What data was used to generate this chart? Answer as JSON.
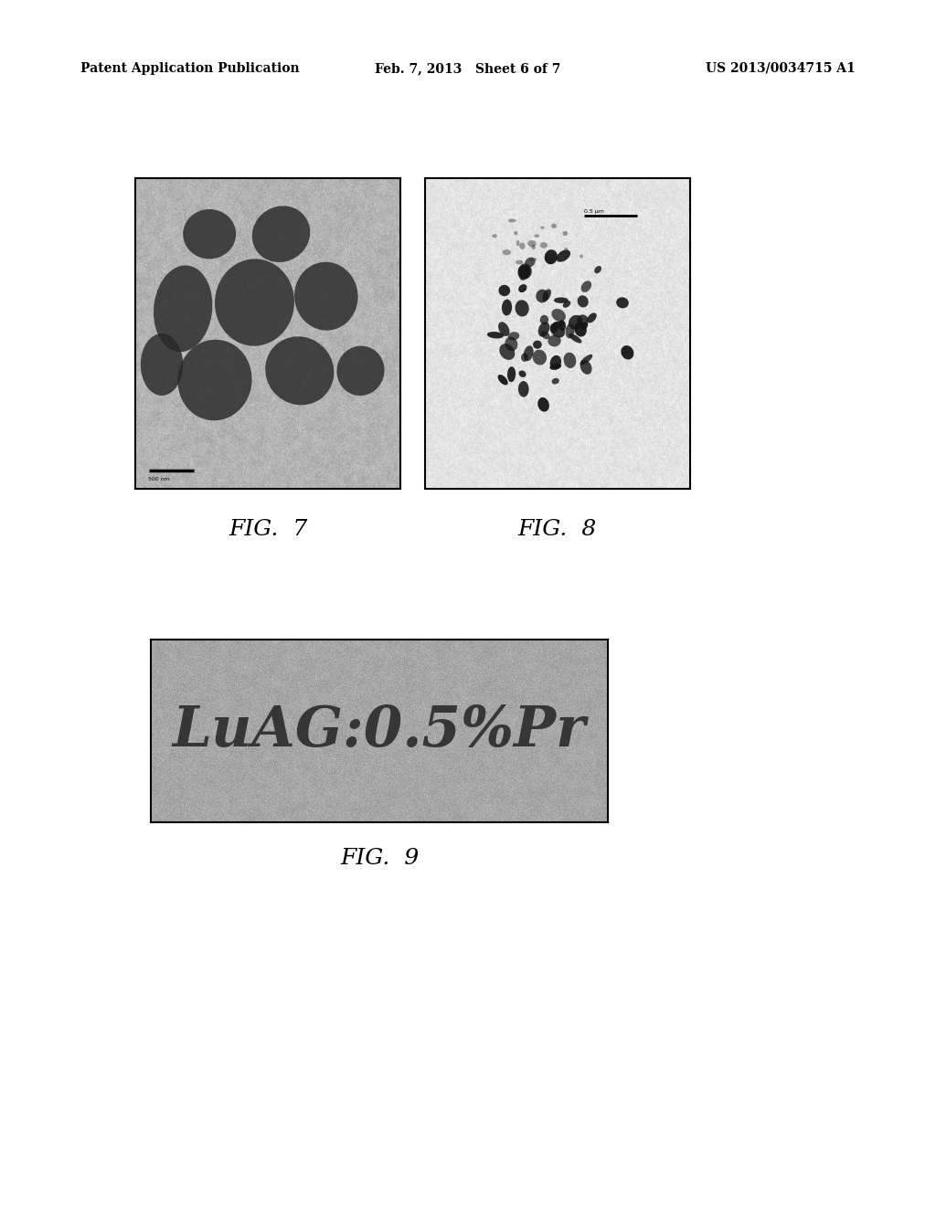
{
  "background_color": "#ffffff",
  "header_text_left": "Patent Application Publication",
  "header_text_mid": "Feb. 7, 2013   Sheet 6 of 7",
  "header_text_right": "US 2013/0034715 A1",
  "fig7_label": "FIG.  7",
  "fig8_label": "FIG.  8",
  "fig9_label": "FIG.  9",
  "fig7_bg": "#b8b8b0",
  "fig8_bg": "#d8d8d0",
  "fig9_bg": "#b0b0a8",
  "luag_text": "LuAG:0.5%Pr",
  "luag_text_color": "#2a2a2a",
  "label_fontsize": 18
}
